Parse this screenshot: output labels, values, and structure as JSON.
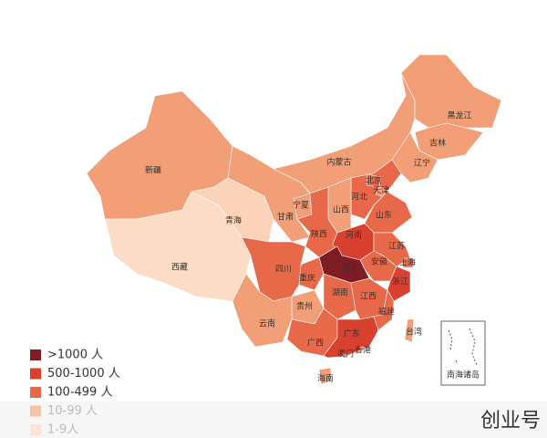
{
  "map": {
    "provinces": [
      {
        "name": "新疆",
        "color": "#f29e77"
      },
      {
        "name": "西藏",
        "color": "#fcdcc6"
      },
      {
        "name": "青海",
        "color": "#fbd3b9"
      },
      {
        "name": "甘肃",
        "color": "#f29e77"
      },
      {
        "name": "内蒙古",
        "color": "#f29e77"
      },
      {
        "name": "黑龙江",
        "color": "#f29e77"
      },
      {
        "name": "吉林",
        "color": "#f29e77"
      },
      {
        "name": "辽宁",
        "color": "#f29e77"
      },
      {
        "name": "河北",
        "color": "#e8694a"
      },
      {
        "name": "北京",
        "color": "#e8694a"
      },
      {
        "name": "天津",
        "color": "#f29e77"
      },
      {
        "name": "山西",
        "color": "#f29e77"
      },
      {
        "name": "山东",
        "color": "#e8694a"
      },
      {
        "name": "宁夏",
        "color": "#f29e77"
      },
      {
        "name": "陕西",
        "color": "#e8694a"
      },
      {
        "name": "河南",
        "color": "#d8402f"
      },
      {
        "name": "江苏",
        "color": "#e8694a"
      },
      {
        "name": "安徽",
        "color": "#e8694a"
      },
      {
        "name": "上海",
        "color": "#e8694a"
      },
      {
        "name": "湖北",
        "color": "#7d1c22"
      },
      {
        "name": "重庆",
        "color": "#e8694a"
      },
      {
        "name": "四川",
        "color": "#e8694a"
      },
      {
        "name": "浙江",
        "color": "#d8402f"
      },
      {
        "name": "湖南",
        "color": "#e8694a"
      },
      {
        "name": "江西",
        "color": "#e8694a"
      },
      {
        "name": "贵州",
        "color": "#f29e77"
      },
      {
        "name": "云南",
        "color": "#f29e77"
      },
      {
        "name": "福建",
        "color": "#e8694a"
      },
      {
        "name": "广西",
        "color": "#e8694a"
      },
      {
        "name": "广东",
        "color": "#d8402f"
      },
      {
        "name": "台湾",
        "color": "#f29e77"
      },
      {
        "name": "海南",
        "color": "#f29e77"
      },
      {
        "name": "澳门",
        "color": "#f29e77"
      },
      {
        "name": "香港",
        "color": "#f29e77"
      }
    ],
    "inset_label": "南海诸岛",
    "legend": [
      {
        "label": ">1000 人",
        "color": "#7d1c22"
      },
      {
        "label": "500-1000 人",
        "color": "#d8402f"
      },
      {
        "label": "100-499 人",
        "color": "#e8694a"
      },
      {
        "label": "10-99 人",
        "color": "#f6c4a8"
      },
      {
        "label": "1-9人",
        "color": "#fde5d6"
      }
    ],
    "watermark": "创业号"
  }
}
